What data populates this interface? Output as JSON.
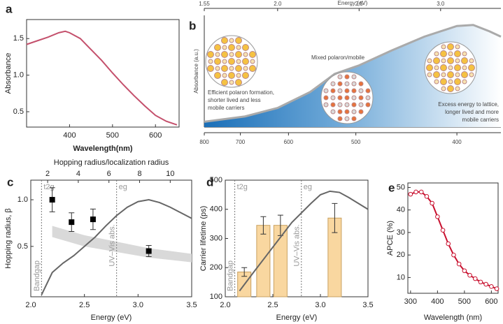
{
  "chart_data": [
    {
      "type": "line",
      "panel_label": "a",
      "xlabel": "Wavelength(nm)",
      "ylabel": "Absorbance",
      "x": [
        300,
        325,
        350,
        375,
        390,
        400,
        425,
        450,
        475,
        500,
        525,
        550,
        575,
        600,
        625,
        650
      ],
      "values": [
        1.42,
        1.47,
        1.52,
        1.58,
        1.6,
        1.58,
        1.5,
        1.35,
        1.2,
        1.03,
        0.87,
        0.72,
        0.58,
        0.45,
        0.37,
        0.32
      ],
      "color": "#c4506c",
      "xlim": [
        300,
        655
      ],
      "ylim": [
        0.29,
        1.76
      ],
      "xticks": [
        400,
        500,
        600
      ],
      "yticks": [
        0.5,
        {
          "value": 1,
          "label": "1.0"
        },
        1.5
      ]
    },
    {
      "type": "area",
      "panel_label": "b",
      "xlabel": "Energy (eV)",
      "ylabel": "Absorbance (a.u.)",
      "x": [
        1.55,
        1.8,
        2.0,
        2.2,
        2.35,
        2.5,
        2.7,
        2.9,
        3.1,
        3.2,
        3.3,
        3.37
      ],
      "values": [
        0.05,
        0.1,
        0.18,
        0.33,
        0.5,
        0.58,
        0.72,
        0.85,
        0.95,
        0.96,
        0.9,
        0.85
      ],
      "color": "#1a6fb8",
      "line_color": "#aaaaaa",
      "xlim": [
        1.55,
        3.37
      ],
      "ylim": [
        0,
        1.05
      ],
      "xticks": [
        1.55,
        {
          "value": 2,
          "label": "2.0"
        },
        2.5,
        {
          "value": 3,
          "label": "3.0"
        }
      ],
      "x2ticks": [
        800,
        700,
        600,
        500,
        400
      ],
      "annotations": [
        [
          "Efficient polaron formation,",
          "shorter lived and less",
          "mobile carriers"
        ],
        [
          "Mixed polaron/mobile"
        ],
        [
          "Excess energy to lattice,",
          "longer lived and more",
          "mobile carriers"
        ]
      ]
    },
    {
      "type": "scatter",
      "panel_label": "c",
      "xlabel": "Energy (eV)",
      "ylabel": "Hopping radius, β",
      "x2label": "Hopping radius/localization radius",
      "points": {
        "x": [
          2.2,
          2.38,
          2.58,
          3.1
        ],
        "values": [
          1.0,
          0.76,
          0.79,
          0.45
        ],
        "errors": [
          0.13,
          0.1,
          0.11,
          0.06
        ],
        "color": "#000000"
      },
      "curve": {
        "x": [
          2.1,
          2.2,
          2.3,
          2.4,
          2.5,
          2.6,
          2.7,
          2.8,
          2.9,
          3.0,
          3.1,
          3.2,
          3.3,
          3.4,
          3.5
        ],
        "values": [
          -0.02,
          0.22,
          0.32,
          0.4,
          0.5,
          0.6,
          0.72,
          0.83,
          0.92,
          0.98,
          1.0,
          0.97,
          0.92,
          0.86,
          0.8
        ],
        "color": "#666666"
      },
      "band": {
        "x": [
          2.2,
          2.5,
          2.8,
          3.1,
          3.5
        ],
        "lower": [
          0.6,
          0.5,
          0.44,
          0.38,
          0.33
        ],
        "upper": [
          0.72,
          0.62,
          0.55,
          0.48,
          0.42
        ],
        "color": "#d9d9d9"
      },
      "markers": [
        {
          "x": 2.1,
          "label": "t2g"
        },
        {
          "x": 2.8,
          "label": "eg"
        }
      ],
      "annotations": [
        "Bandgap",
        "UV–Vis abs."
      ],
      "xlim": [
        2.0,
        3.5
      ],
      "ylim": [
        -0.04,
        1.21
      ],
      "xticks": [
        {
          "value": 2,
          "label": "2.0"
        },
        2.5,
        {
          "value": 3,
          "label": "3.0"
        },
        3.5
      ],
      "yticks": [
        0.5,
        {
          "value": 1,
          "label": "1.0"
        }
      ],
      "x2lim": [
        0.9,
        11.4
      ],
      "x2ticks": [
        2,
        4,
        6,
        8,
        10
      ]
    },
    {
      "type": "bar",
      "panel_label": "d",
      "xlabel": "Energy (eV)",
      "ylabel": "Carrier lifetime (ps)",
      "bars": {
        "x": [
          2.2,
          2.4,
          2.58,
          3.15
        ],
        "values": [
          185,
          345,
          345,
          370
        ],
        "errors": [
          15,
          30,
          35,
          50
        ],
        "width": 0.14,
        "color": "#f9d7a0"
      },
      "curve": {
        "x": [
          2.15,
          2.3,
          2.5,
          2.7,
          2.9,
          3.0,
          3.1,
          3.2,
          3.3,
          3.4,
          3.5
        ],
        "values": [
          120,
          185,
          270,
          355,
          420,
          450,
          462,
          458,
          440,
          420,
          400
        ],
        "color": "#666666"
      },
      "markers": [
        {
          "x": 2.1,
          "label": "t2g"
        },
        {
          "x": 2.8,
          "label": "eg"
        }
      ],
      "annotations": [
        "Bandgap",
        "UV–Vis abs."
      ],
      "xlim": [
        2.0,
        3.5
      ],
      "ylim": [
        100,
        500
      ],
      "xticks": [
        {
          "value": 2,
          "label": "2.0"
        },
        2.5,
        {
          "value": 3,
          "label": "3.0"
        },
        3.5
      ],
      "yticks": [
        100,
        200,
        300,
        400,
        500
      ]
    },
    {
      "type": "line",
      "panel_label": "e",
      "xlabel": "Wavelength (nm)",
      "ylabel": "APCE (%)",
      "x": [
        300,
        320,
        340,
        360,
        380,
        400,
        420,
        440,
        460,
        480,
        500,
        520,
        540,
        560,
        580,
        600,
        620
      ],
      "values": [
        47,
        48,
        48,
        46,
        43,
        37,
        31,
        25,
        20,
        16,
        13,
        11,
        9.5,
        8,
        7,
        6,
        5
      ],
      "color": "#c8102e",
      "markers": true,
      "xlim": [
        290,
        625
      ],
      "ylim": [
        3,
        52
      ],
      "xticks": [
        300,
        400,
        500,
        600
      ],
      "yticks": [
        10,
        20,
        30,
        40,
        50
      ]
    }
  ]
}
